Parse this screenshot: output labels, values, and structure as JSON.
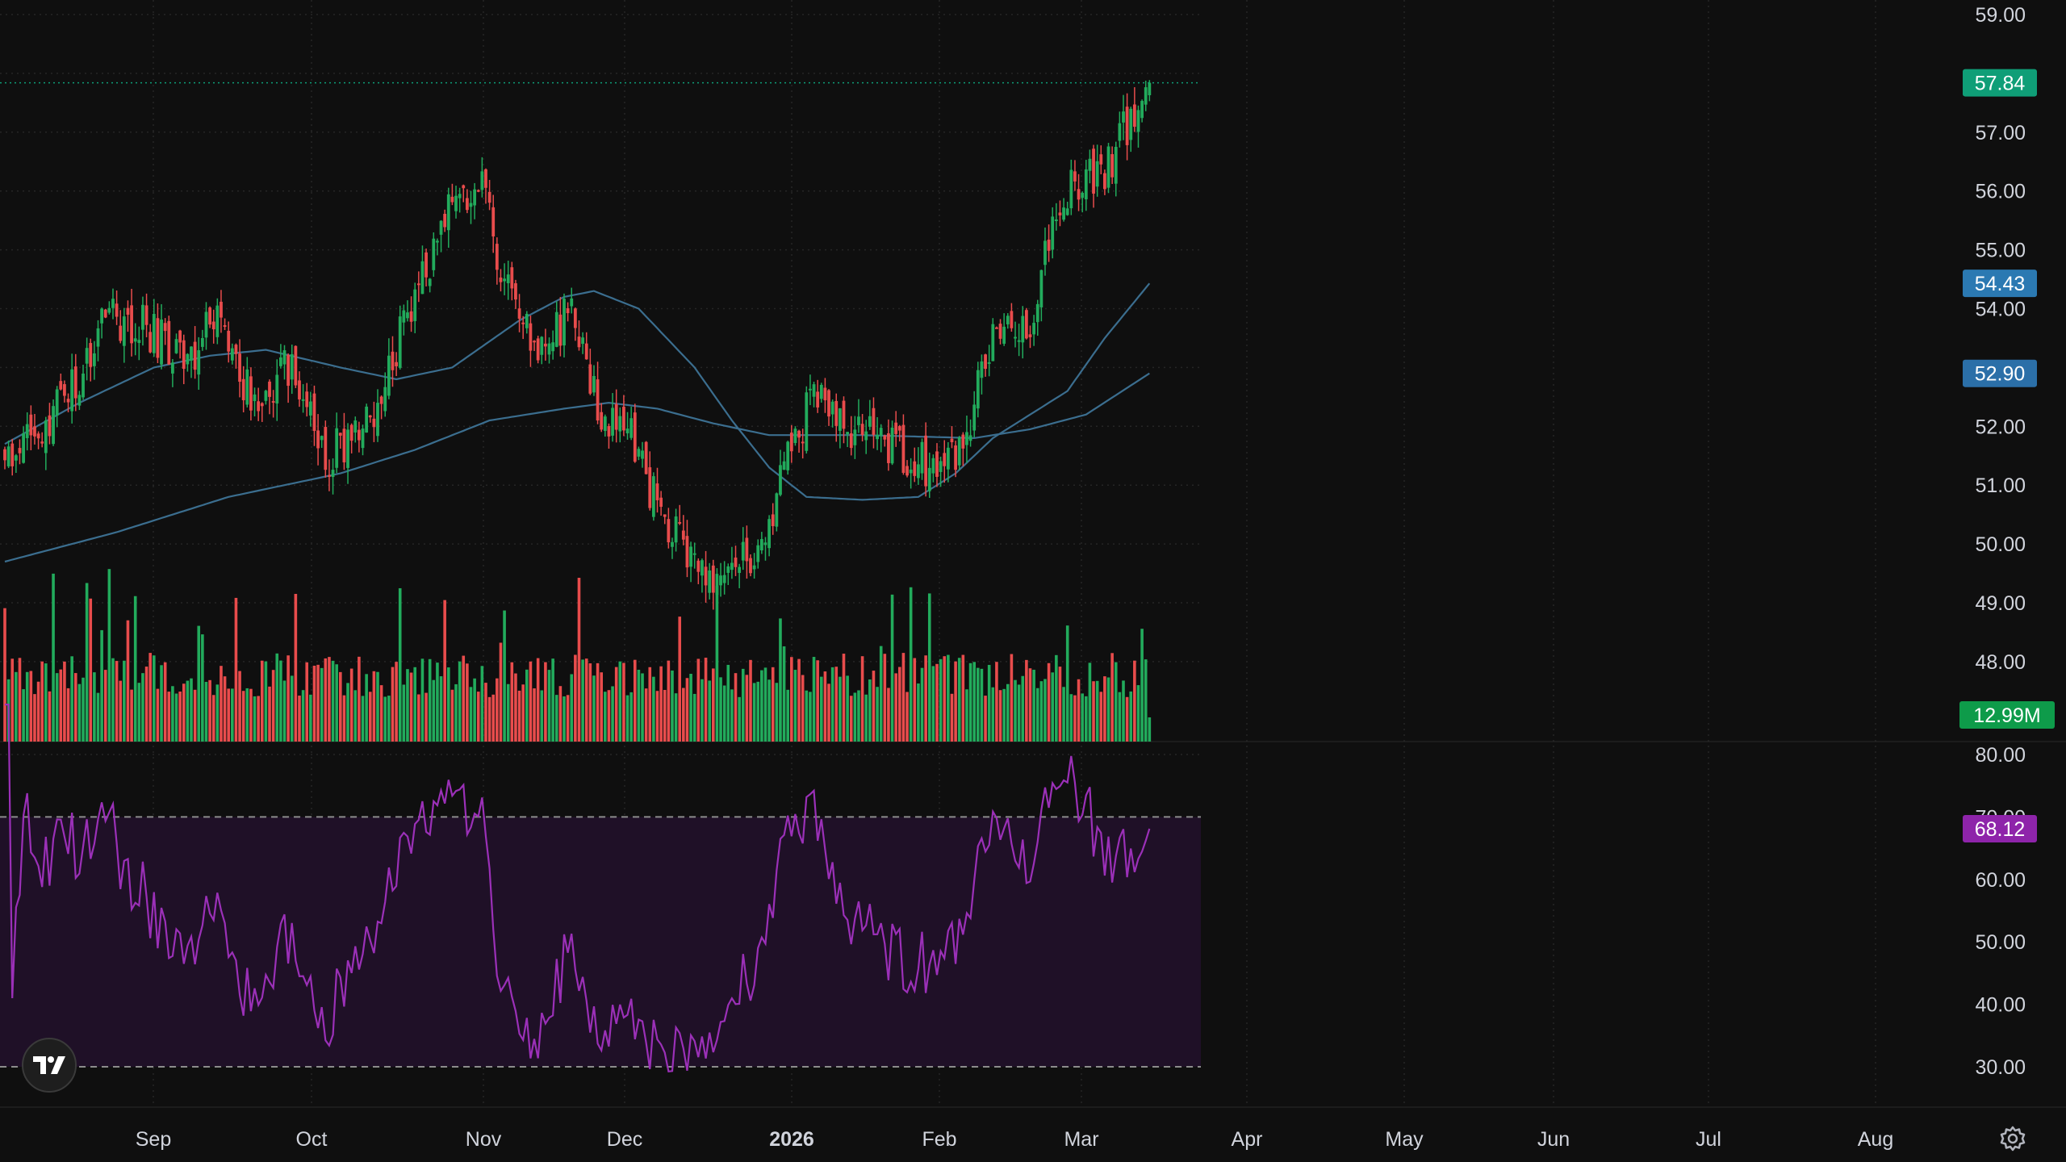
{
  "colors": {
    "background": "#0f0f0f",
    "grid": "#262626",
    "text": "#d1d4dc",
    "up": "#22ab5c",
    "down": "#e84c4c",
    "ma": "#3b6e8f",
    "ma_badge_short": "#2b79b2",
    "ma_badge_long": "#2b6fa8",
    "last_price_badge": "#0f9e77",
    "volume_badge": "#0e9b4a",
    "rsi_line": "#9b30b8",
    "rsi_band": "#1f1027",
    "rsi_badge": "#8e24aa"
  },
  "chart_data": {
    "type": "candlestick",
    "price_axis": {
      "ticks": [
        "59.00",
        "57.00",
        "56.00",
        "55.00",
        "54.00",
        "53.00",
        "52.00",
        "51.00",
        "50.00",
        "49.00",
        "48.00"
      ],
      "ylim": [
        47.7,
        59.0
      ]
    },
    "x_axis_labels": [
      {
        "text": "Sep",
        "bold": false
      },
      {
        "text": "Oct",
        "bold": false
      },
      {
        "text": "Nov",
        "bold": false
      },
      {
        "text": "Dec",
        "bold": false
      },
      {
        "text": "2026",
        "bold": true
      },
      {
        "text": "Feb",
        "bold": false
      },
      {
        "text": "Mar",
        "bold": false
      },
      {
        "text": "Apr",
        "bold": false
      },
      {
        "text": "May",
        "bold": false
      },
      {
        "text": "Jun",
        "bold": false
      },
      {
        "text": "Jul",
        "bold": false
      },
      {
        "text": "Aug",
        "bold": false
      }
    ],
    "close_anchors": [
      {
        "t": 0,
        "v": 51.6
      },
      {
        "t": 10,
        "v": 52.1
      },
      {
        "t": 20,
        "v": 52.7
      },
      {
        "t": 27,
        "v": 53.9
      },
      {
        "t": 40,
        "v": 53.6
      },
      {
        "t": 48,
        "v": 53.1
      },
      {
        "t": 56,
        "v": 53.8
      },
      {
        "t": 67,
        "v": 52.3
      },
      {
        "t": 77,
        "v": 53.1
      },
      {
        "t": 86,
        "v": 51.4
      },
      {
        "t": 99,
        "v": 52.2
      },
      {
        "t": 110,
        "v": 54.3
      },
      {
        "t": 119,
        "v": 55.6
      },
      {
        "t": 127,
        "v": 56.2
      },
      {
        "t": 135,
        "v": 54.3
      },
      {
        "t": 142,
        "v": 53.4
      },
      {
        "t": 152,
        "v": 53.9
      },
      {
        "t": 160,
        "v": 52.2
      },
      {
        "t": 168,
        "v": 51.8
      },
      {
        "t": 176,
        "v": 50.5
      },
      {
        "t": 183,
        "v": 49.9
      },
      {
        "t": 190,
        "v": 49.2
      },
      {
        "t": 197,
        "v": 49.6
      },
      {
        "t": 203,
        "v": 49.9
      },
      {
        "t": 211,
        "v": 51.6
      },
      {
        "t": 217,
        "v": 52.6
      },
      {
        "t": 225,
        "v": 51.9
      },
      {
        "t": 238,
        "v": 51.7
      },
      {
        "t": 250,
        "v": 51.2
      },
      {
        "t": 258,
        "v": 51.8
      },
      {
        "t": 265,
        "v": 53.6
      },
      {
        "t": 276,
        "v": 53.9
      },
      {
        "t": 283,
        "v": 55.9
      },
      {
        "t": 295,
        "v": 56.4
      },
      {
        "t": 303,
        "v": 57.3
      },
      {
        "t": 307,
        "v": 57.84
      }
    ],
    "last_price": "57.84",
    "ma_short": {
      "last": "54.43",
      "points": [
        {
          "t": 0,
          "v": 51.7
        },
        {
          "t": 20,
          "v": 52.4
        },
        {
          "t": 40,
          "v": 53.0
        },
        {
          "t": 55,
          "v": 53.2
        },
        {
          "t": 70,
          "v": 53.3
        },
        {
          "t": 90,
          "v": 53.0
        },
        {
          "t": 105,
          "v": 52.8
        },
        {
          "t": 120,
          "v": 53.0
        },
        {
          "t": 138,
          "v": 53.8
        },
        {
          "t": 150,
          "v": 54.2
        },
        {
          "t": 158,
          "v": 54.3
        },
        {
          "t": 170,
          "v": 54.0
        },
        {
          "t": 185,
          "v": 53.0
        },
        {
          "t": 195,
          "v": 52.1
        },
        {
          "t": 205,
          "v": 51.3
        },
        {
          "t": 215,
          "v": 50.8
        },
        {
          "t": 230,
          "v": 50.75
        },
        {
          "t": 245,
          "v": 50.8
        },
        {
          "t": 255,
          "v": 51.2
        },
        {
          "t": 265,
          "v": 51.8
        },
        {
          "t": 275,
          "v": 52.2
        },
        {
          "t": 285,
          "v": 52.6
        },
        {
          "t": 295,
          "v": 53.5
        },
        {
          "t": 307,
          "v": 54.43
        }
      ]
    },
    "ma_long": {
      "last": "52.90",
      "points": [
        {
          "t": 0,
          "v": 49.7
        },
        {
          "t": 30,
          "v": 50.2
        },
        {
          "t": 60,
          "v": 50.8
        },
        {
          "t": 90,
          "v": 51.2
        },
        {
          "t": 110,
          "v": 51.6
        },
        {
          "t": 130,
          "v": 52.1
        },
        {
          "t": 150,
          "v": 52.3
        },
        {
          "t": 162,
          "v": 52.4
        },
        {
          "t": 175,
          "v": 52.3
        },
        {
          "t": 190,
          "v": 52.05
        },
        {
          "t": 205,
          "v": 51.85
        },
        {
          "t": 230,
          "v": 51.85
        },
        {
          "t": 260,
          "v": 51.8
        },
        {
          "t": 275,
          "v": 51.95
        },
        {
          "t": 290,
          "v": 52.2
        },
        {
          "t": 307,
          "v": 52.9
        }
      ]
    },
    "volume": {
      "last": "12.99M"
    },
    "rsi": {
      "axis_ticks": [
        "80.00",
        "70.00",
        "60.00",
        "50.00",
        "40.00",
        "30.00"
      ],
      "ylim": [
        30,
        80
      ],
      "overbought": 70,
      "oversold": 30,
      "last": "68.12"
    }
  }
}
